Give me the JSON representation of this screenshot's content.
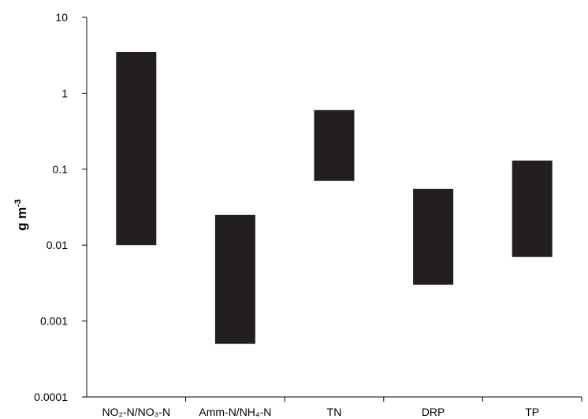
{
  "chart_data": {
    "type": "bar",
    "subtype": "floating-range",
    "yscale": "log",
    "ylim": [
      0.0001,
      10
    ],
    "yticks": [
      "10",
      "1",
      "0.1",
      "0.01",
      "0.001",
      "0.0001"
    ],
    "ylabel": {
      "base": "g m",
      "sup": "-3"
    },
    "xlabel": "",
    "title": "",
    "grid": false,
    "bar_color": "#231f20",
    "categories": [
      {
        "label": "NO₂-N/NO₃-N",
        "low": 0.01,
        "high": 3.5
      },
      {
        "label": "Amm-N/NH₄-N",
        "low": 0.0005,
        "high": 0.025
      },
      {
        "label": "TN",
        "low": 0.07,
        "high": 0.6
      },
      {
        "label": "DRP",
        "low": 0.003,
        "high": 0.055
      },
      {
        "label": "TP",
        "low": 0.007,
        "high": 0.13
      }
    ]
  }
}
